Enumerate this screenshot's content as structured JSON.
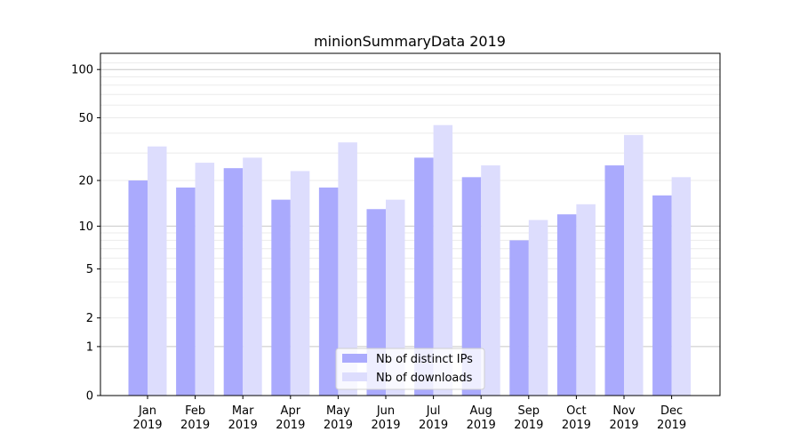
{
  "chart_data": {
    "type": "bar",
    "title": "minionSummaryData 2019",
    "xlabel": "",
    "ylabel": "",
    "yscale": "log10(1+y)",
    "ylim": [
      0,
      120
    ],
    "yticks": [
      0,
      1,
      2,
      5,
      10,
      20,
      50,
      100
    ],
    "ytick_labels": [
      "0",
      "1",
      "2",
      "5",
      "10",
      "20",
      "50",
      "100"
    ],
    "grid": true,
    "legend_position": "bottom-center",
    "categories": [
      [
        "Jan",
        "2019"
      ],
      [
        "Feb",
        "2019"
      ],
      [
        "Mar",
        "2019"
      ],
      [
        "Apr",
        "2019"
      ],
      [
        "May",
        "2019"
      ],
      [
        "Jun",
        "2019"
      ],
      [
        "Jul",
        "2019"
      ],
      [
        "Aug",
        "2019"
      ],
      [
        "Sep",
        "2019"
      ],
      [
        "Oct",
        "2019"
      ],
      [
        "Nov",
        "2019"
      ],
      [
        "Dec",
        "2019"
      ]
    ],
    "series": [
      {
        "name": "Nb of distinct IPs",
        "color": "#aaaafd",
        "values": [
          20,
          18,
          24,
          15,
          18,
          13,
          28,
          21,
          8,
          12,
          25,
          16
        ]
      },
      {
        "name": "Nb of downloads",
        "color": "#ddddfd",
        "values": [
          33,
          26,
          28,
          23,
          35,
          15,
          45,
          25,
          11,
          14,
          39,
          21
        ]
      }
    ]
  }
}
